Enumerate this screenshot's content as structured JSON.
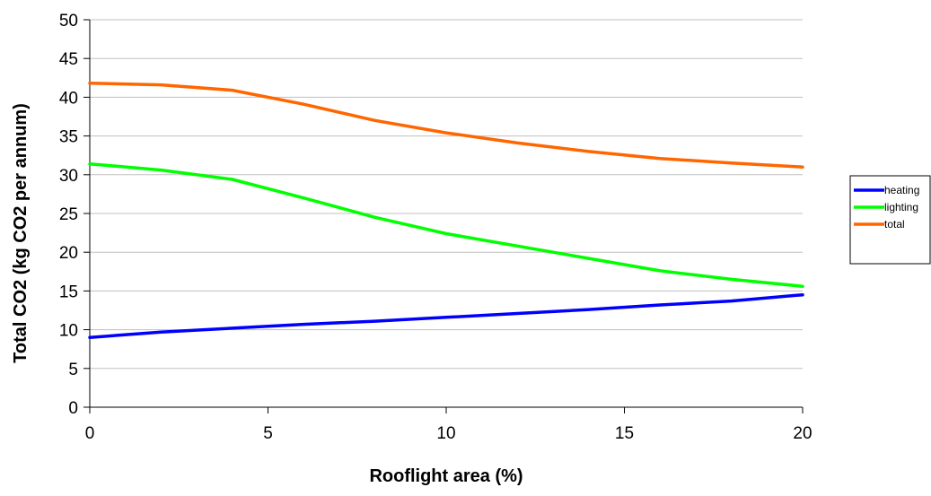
{
  "chart_data": {
    "type": "line",
    "title": "",
    "xlabel": "Rooflight area (%)",
    "ylabel": "Total CO2 (kg CO2 per annum)",
    "xlim": [
      0,
      20
    ],
    "ylim": [
      0,
      50
    ],
    "xticks": [
      0,
      5,
      10,
      15,
      20
    ],
    "yticks": [
      0,
      5,
      10,
      15,
      20,
      25,
      30,
      35,
      40,
      45,
      50
    ],
    "x": [
      0,
      2,
      4,
      6,
      8,
      10,
      12,
      14,
      16,
      18,
      20
    ],
    "series": [
      {
        "name": "heating",
        "color": "#0000ff",
        "values": [
          9.0,
          9.7,
          10.2,
          10.7,
          11.1,
          11.6,
          12.1,
          12.6,
          13.2,
          13.7,
          14.5
        ]
      },
      {
        "name": "lighting",
        "color": "#00ff00",
        "values": [
          31.4,
          30.6,
          29.4,
          27.0,
          24.5,
          22.4,
          20.8,
          19.2,
          17.6,
          16.5,
          15.6
        ]
      },
      {
        "name": "total",
        "color": "#ff6600",
        "values": [
          41.8,
          41.6,
          40.9,
          39.1,
          37.0,
          35.4,
          34.1,
          33.0,
          32.1,
          31.5,
          31.0
        ]
      }
    ],
    "grid": {
      "horizontal": true,
      "vertical": false
    },
    "legend": "right"
  }
}
